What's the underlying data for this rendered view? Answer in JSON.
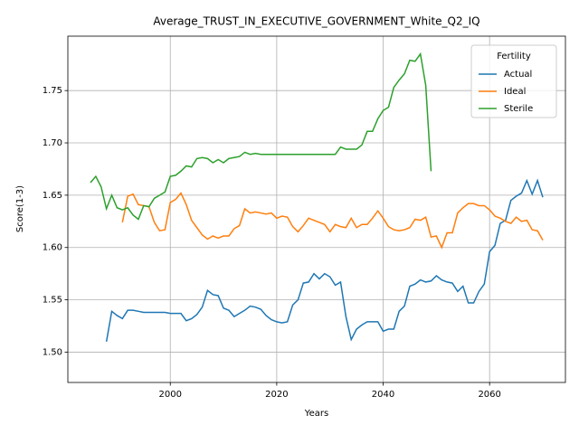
{
  "chart_data": {
    "type": "line",
    "title": "Average_TRUST_IN_EXECUTIVE_GOVERNMENT_White_Q2_IQ",
    "xlabel": "Years",
    "ylabel": "Score(1-3)",
    "legend_title": "Fertility",
    "legend": "upper right",
    "grid": true,
    "x": [
      1985,
      1986,
      1987,
      1988,
      1989,
      1990,
      1991,
      1992,
      1993,
      1994,
      1995,
      1996,
      1997,
      1998,
      1999,
      2000,
      2001,
      2002,
      2003,
      2004,
      2005,
      2006,
      2007,
      2008,
      2009,
      2010,
      2011,
      2012,
      2013,
      2014,
      2015,
      2016,
      2017,
      2018,
      2019,
      2020,
      2021,
      2022,
      2023,
      2024,
      2025,
      2026,
      2027,
      2028,
      2029,
      2030,
      2031,
      2032,
      2033,
      2034,
      2035,
      2036,
      2037,
      2038,
      2039,
      2040,
      2041,
      2042,
      2043,
      2044,
      2045,
      2046,
      2047,
      2048,
      2049,
      2050,
      2051,
      2052,
      2053,
      2054,
      2055,
      2056,
      2057,
      2058,
      2059,
      2060,
      2061,
      2062,
      2063,
      2064,
      2065,
      2066,
      2067,
      2068,
      2069,
      2070
    ],
    "series": [
      {
        "name": "Actual",
        "color": "#1f77b4",
        "values": [
          null,
          null,
          null,
          1.51,
          1.539,
          1.535,
          1.532,
          1.54,
          1.54,
          1.539,
          1.538,
          1.538,
          1.538,
          1.538,
          1.538,
          1.537,
          1.537,
          1.537,
          1.53,
          1.532,
          1.536,
          1.543,
          1.559,
          1.555,
          1.554,
          1.542,
          1.54,
          1.534,
          1.537,
          1.54,
          1.544,
          1.543,
          1.541,
          1.535,
          1.531,
          1.529,
          1.528,
          1.529,
          1.545,
          1.55,
          1.566,
          1.567,
          1.575,
          1.57,
          1.575,
          1.572,
          1.564,
          1.567,
          1.534,
          1.512,
          1.522,
          1.526,
          1.529,
          1.529,
          1.529,
          1.52,
          1.522,
          1.522,
          1.539,
          1.544,
          1.563,
          1.565,
          1.569,
          1.567,
          1.568,
          1.573,
          1.569,
          1.567,
          1.566,
          1.558,
          1.563,
          1.547,
          1.547,
          1.558,
          1.565,
          1.596,
          1.602,
          1.623,
          1.626,
          1.645,
          1.649,
          1.652,
          1.664,
          1.651,
          1.664,
          1.648
        ]
      },
      {
        "name": "Ideal",
        "color": "#ff7f0e",
        "values": [
          null,
          null,
          null,
          null,
          null,
          null,
          1.624,
          1.649,
          1.651,
          1.641,
          1.64,
          1.639,
          1.624,
          1.616,
          1.617,
          1.643,
          1.646,
          1.652,
          1.641,
          1.626,
          1.619,
          1.612,
          1.608,
          1.611,
          1.609,
          1.611,
          1.611,
          1.618,
          1.621,
          1.637,
          1.633,
          1.634,
          1.633,
          1.632,
          1.633,
          1.628,
          1.63,
          1.629,
          1.62,
          1.615,
          1.621,
          1.628,
          1.626,
          1.624,
          1.622,
          1.615,
          1.622,
          1.62,
          1.619,
          1.628,
          1.619,
          1.622,
          1.622,
          1.628,
          1.635,
          1.628,
          1.62,
          1.617,
          1.616,
          1.617,
          1.619,
          1.627,
          1.626,
          1.629,
          1.61,
          1.611,
          1.6,
          1.614,
          1.614,
          1.633,
          1.638,
          1.642,
          1.642,
          1.64,
          1.64,
          1.636,
          1.63,
          1.628,
          1.625,
          1.623,
          1.629,
          1.625,
          1.626,
          1.617,
          1.616,
          1.607
        ]
      },
      {
        "name": "Sterile",
        "color": "#2ca02c",
        "values": [
          1.662,
          1.668,
          1.658,
          1.637,
          1.65,
          1.638,
          1.636,
          1.638,
          1.631,
          1.627,
          1.64,
          1.639,
          1.647,
          1.65,
          1.653,
          1.668,
          1.669,
          1.673,
          1.678,
          1.677,
          1.685,
          1.686,
          1.685,
          1.681,
          1.684,
          1.681,
          1.685,
          1.686,
          1.687,
          1.691,
          1.689,
          1.69,
          1.689,
          1.689,
          1.689,
          1.689,
          1.689,
          1.689,
          1.689,
          1.689,
          1.689,
          1.689,
          1.689,
          1.689,
          1.689,
          1.689,
          1.689,
          1.696,
          1.694,
          1.694,
          1.694,
          1.698,
          1.711,
          1.711,
          1.723,
          1.731,
          1.734,
          1.753,
          1.76,
          1.766,
          1.779,
          1.778,
          1.785,
          1.755,
          1.673,
          null,
          null,
          null,
          null,
          null,
          null,
          null,
          null,
          null,
          null,
          null,
          null,
          null,
          null,
          null,
          null,
          null,
          null,
          null,
          null,
          null
        ]
      }
    ],
    "xlim": [
      1980.75,
      2074.25
    ],
    "xticks": [
      2000,
      2020,
      2040,
      2060
    ],
    "ylim": [
      1.471,
      1.802
    ],
    "yticks": [
      {
        "value": 1.5,
        "label": "1.50"
      },
      1.55,
      {
        "value": 1.6,
        "label": "1.60"
      },
      1.65,
      {
        "value": 1.7,
        "label": "1.70"
      },
      1.75
    ]
  }
}
